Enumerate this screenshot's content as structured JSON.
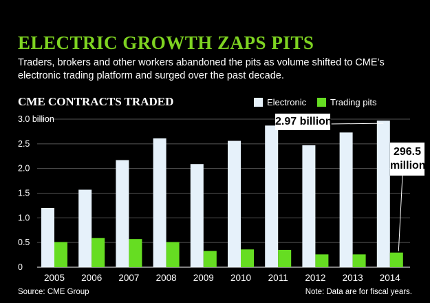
{
  "headline": "ELECTRIC GROWTH ZAPS PITS",
  "dek": "Traders, brokers and other workers abandoned the pits as volume shifted to CME’s electronic trading platform and surged over the past decade.",
  "source": "Source: CME Group",
  "note": "Note: Data are for fiscal years.",
  "callouts": {
    "electronic": "2.97 billion",
    "pits_line1": "296.5",
    "pits_line2": "million"
  },
  "colors": {
    "background": "#000000",
    "headline": "#7ed321",
    "electronic": "#e6f1fa",
    "trading_pits": "#66dd22",
    "gridline": "#555555"
  },
  "chart_data": {
    "type": "bar",
    "title": "CME CONTRACTS TRADED",
    "xlabel": "",
    "ylabel": "",
    "categories": [
      "2005",
      "2006",
      "2007",
      "2008",
      "2009",
      "2010",
      "2011",
      "2012",
      "2013",
      "2014"
    ],
    "series": [
      {
        "name": "Electronic",
        "values": [
          1.2,
          1.57,
          2.17,
          2.61,
          2.09,
          2.56,
          2.87,
          2.47,
          2.73,
          2.97
        ]
      },
      {
        "name": "Trading pits",
        "values": [
          0.51,
          0.59,
          0.57,
          0.51,
          0.33,
          0.36,
          0.35,
          0.26,
          0.26,
          0.2965
        ]
      }
    ],
    "ylim": [
      0,
      3.0
    ],
    "yticks": [
      0,
      0.5,
      1.0,
      1.5,
      2.0,
      2.5,
      3.0
    ],
    "ytick_labels": [
      "0",
      "0.5",
      "1.0",
      "1.5",
      "2.0",
      "2.5",
      "3.0 billion"
    ],
    "grid": true,
    "legend": "top-right"
  }
}
